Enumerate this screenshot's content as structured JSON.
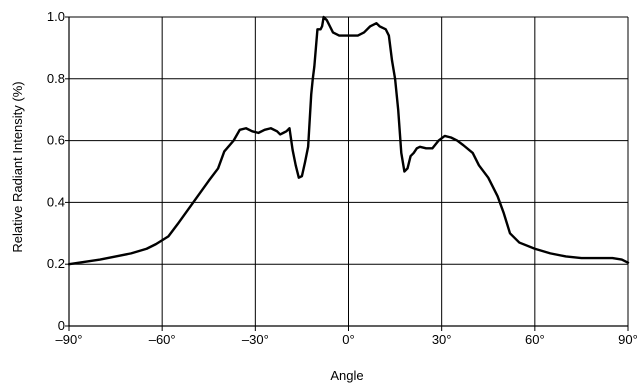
{
  "chart_data": {
    "type": "line",
    "title": "",
    "xlabel": "Angle",
    "ylabel": "Relative Radiant Intensity (%)",
    "xlim": [
      -90,
      90
    ],
    "ylim": [
      0,
      1.0
    ],
    "grid": true,
    "x_ticks": [
      -90,
      -60,
      -30,
      0,
      30,
      60,
      90
    ],
    "x_tick_labels": [
      "–90°",
      "–60°",
      "–30°",
      "0°",
      "30°",
      "60°",
      "90°"
    ],
    "y_ticks": [
      0,
      0.2,
      0.4,
      0.6,
      0.8,
      1.0
    ],
    "y_tick_labels": [
      "0",
      "0.2",
      "0.4",
      "0.6",
      "0.8",
      "1.0"
    ],
    "line_color": "#000000",
    "series": [
      {
        "x": [
          -90,
          -80,
          -70,
          -65,
          -62,
          -58,
          -55,
          -50,
          -45,
          -42,
          -40,
          -37,
          -35,
          -33,
          -31,
          -29,
          -27,
          -25,
          -23,
          -22,
          -21,
          -20,
          -19,
          -18,
          -17,
          -16,
          -15,
          -14,
          -13,
          -12,
          -11.5,
          -11,
          -10,
          -9,
          -8.5,
          -8,
          -7,
          -6,
          -5,
          -3,
          0,
          3,
          5,
          7,
          9,
          10,
          11,
          12,
          13,
          14,
          15,
          16,
          17,
          18,
          19,
          20,
          21,
          22,
          23,
          25,
          27,
          29,
          31,
          33,
          35,
          37,
          40,
          42,
          45,
          48,
          50,
          52,
          55,
          60,
          65,
          70,
          75,
          80,
          85,
          88,
          90
        ],
        "y": [
          0.2,
          0.215,
          0.235,
          0.25,
          0.265,
          0.29,
          0.33,
          0.4,
          0.47,
          0.51,
          0.565,
          0.6,
          0.635,
          0.64,
          0.63,
          0.625,
          0.635,
          0.64,
          0.63,
          0.62,
          0.625,
          0.63,
          0.64,
          0.57,
          0.52,
          0.48,
          0.485,
          0.53,
          0.58,
          0.75,
          0.8,
          0.84,
          0.96,
          0.96,
          0.97,
          1.0,
          0.99,
          0.97,
          0.95,
          0.94,
          0.94,
          0.94,
          0.95,
          0.97,
          0.98,
          0.97,
          0.965,
          0.96,
          0.94,
          0.86,
          0.8,
          0.7,
          0.56,
          0.5,
          0.51,
          0.55,
          0.56,
          0.575,
          0.58,
          0.575,
          0.575,
          0.6,
          0.615,
          0.61,
          0.6,
          0.585,
          0.56,
          0.52,
          0.48,
          0.42,
          0.365,
          0.3,
          0.27,
          0.25,
          0.235,
          0.225,
          0.22,
          0.22,
          0.22,
          0.215,
          0.205
        ]
      }
    ]
  }
}
